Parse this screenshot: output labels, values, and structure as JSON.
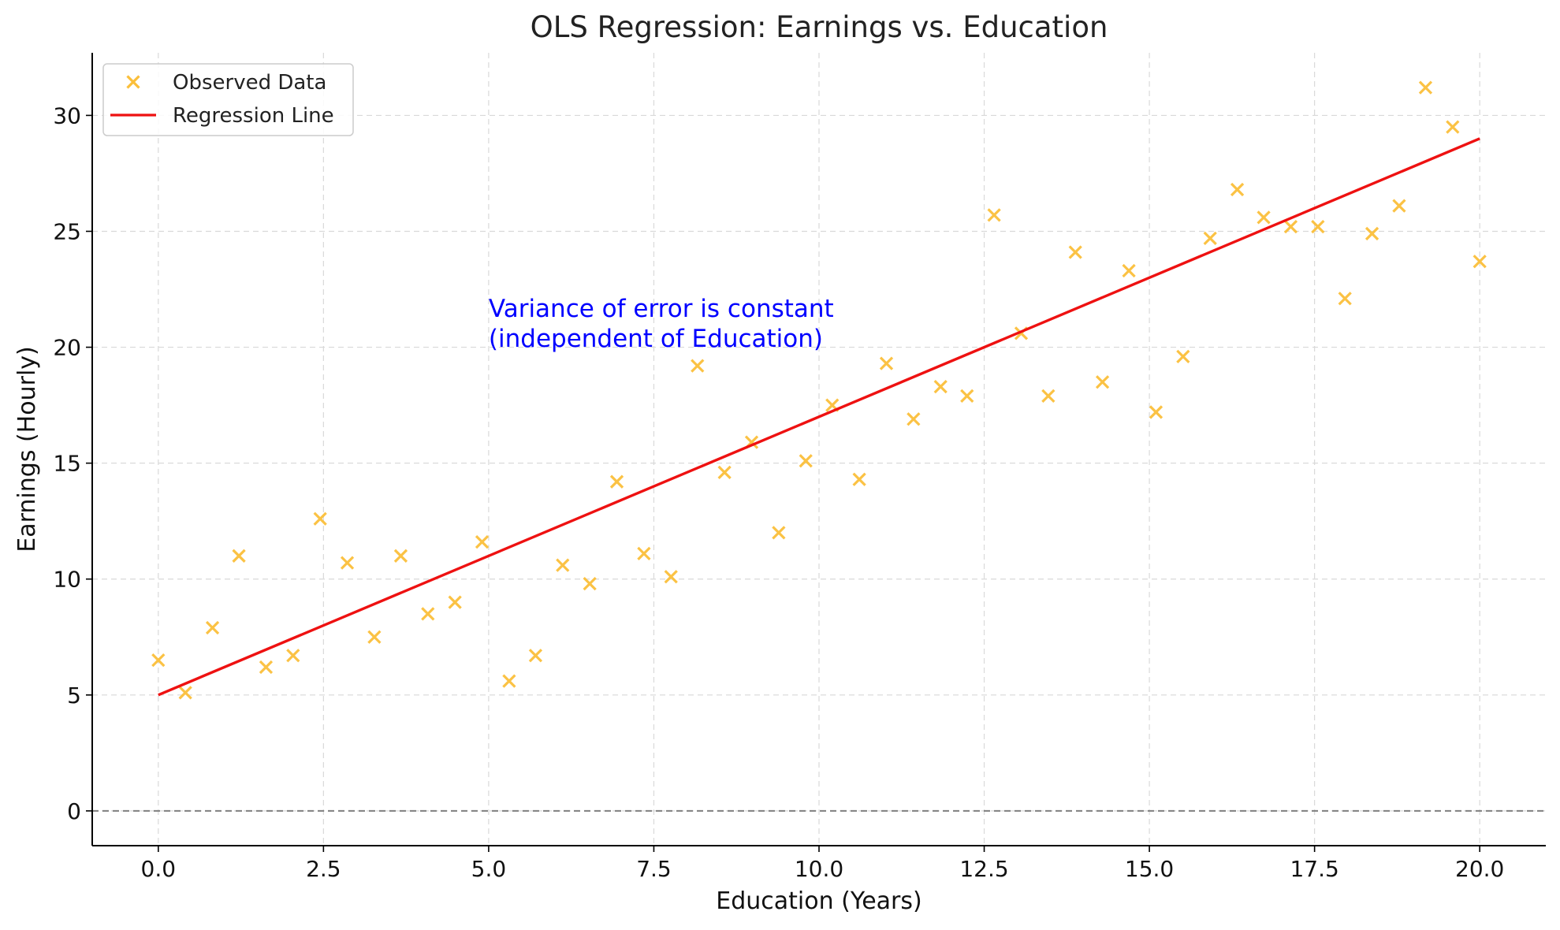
{
  "chart_data": {
    "type": "scatter",
    "title": "OLS Regression: Earnings vs. Education",
    "xlabel": "Education (Years)",
    "ylabel": "Earnings (Hourly)",
    "xlim": [
      -1.0,
      21.0
    ],
    "ylim": [
      -1.5,
      32.7
    ],
    "xticks": [
      0.0,
      2.5,
      5.0,
      7.5,
      10.0,
      12.5,
      15.0,
      17.5,
      20.0
    ],
    "xtick_labels": [
      "0.0",
      "2.5",
      "5.0",
      "7.5",
      "10.0",
      "12.5",
      "15.0",
      "17.5",
      "20.0"
    ],
    "yticks": [
      0,
      5,
      10,
      15,
      20,
      25,
      30
    ],
    "ytick_labels": [
      "0",
      "5",
      "10",
      "15",
      "20",
      "25",
      "30"
    ],
    "grid": true,
    "legend_position": "top-left",
    "zero_reference_line": 0,
    "series": [
      {
        "name": "Observed Data",
        "kind": "scatter",
        "marker": "x",
        "color": "#fbbf3a",
        "x": [
          0.0,
          0.41,
          0.82,
          1.22,
          1.63,
          2.04,
          2.45,
          2.86,
          3.27,
          3.67,
          4.08,
          4.49,
          4.9,
          5.31,
          5.71,
          6.12,
          6.53,
          6.94,
          7.35,
          7.76,
          8.16,
          8.57,
          8.98,
          9.39,
          9.8,
          10.2,
          10.61,
          11.02,
          11.43,
          11.84,
          12.24,
          12.65,
          13.06,
          13.47,
          13.88,
          14.29,
          14.69,
          15.1,
          15.51,
          15.92,
          16.33,
          16.73,
          17.14,
          17.55,
          17.96,
          18.37,
          18.78,
          19.18,
          19.59,
          20.0
        ],
        "y": [
          6.5,
          5.1,
          7.9,
          11.0,
          6.2,
          6.7,
          12.6,
          10.7,
          7.5,
          11.0,
          8.5,
          9.0,
          11.6,
          5.6,
          6.7,
          10.6,
          9.8,
          14.2,
          11.1,
          10.1,
          19.2,
          14.6,
          15.9,
          12.0,
          15.1,
          17.5,
          14.3,
          19.3,
          16.9,
          18.3,
          17.9,
          25.7,
          20.6,
          17.9,
          24.1,
          18.5,
          23.3,
          17.2,
          19.6,
          24.7,
          26.8,
          25.6,
          25.2,
          25.2,
          22.1,
          24.9,
          26.1,
          31.2,
          29.5,
          23.7
        ]
      },
      {
        "name": "Regression Line",
        "kind": "line",
        "color": "#ee1111",
        "x": [
          0.0,
          20.0
        ],
        "y": [
          5.0,
          29.0
        ]
      }
    ],
    "annotations": [
      {
        "x": 5.0,
        "y": 20.2,
        "lines": [
          "Variance of error is constant",
          "(independent of Education)"
        ],
        "color": "#0000ff"
      }
    ]
  }
}
